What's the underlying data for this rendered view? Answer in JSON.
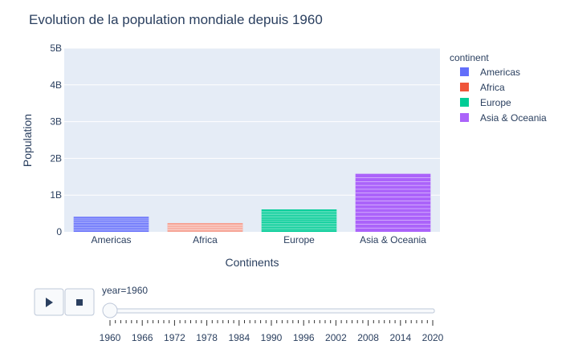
{
  "chart_data": {
    "type": "bar",
    "title": "Evolution de la population mondiale  depuis 1960",
    "xlabel": "Continents",
    "ylabel": "Population",
    "categories": [
      "Americas",
      "Africa",
      "Europe",
      "Asia & Oceania"
    ],
    "y_tick_labels": [
      "0",
      "1B",
      "2B",
      "3B",
      "4B",
      "5B"
    ],
    "y_tick_values": [
      0,
      1000000000,
      2000000000,
      3000000000,
      4000000000,
      5000000000
    ],
    "ylim": [
      0,
      5000000000
    ],
    "grid": true,
    "legend_title": "continent",
    "legend_position": "right",
    "series": [
      {
        "name": "Americas",
        "color": "#636efa",
        "values": [
          410000000,
          0,
          0,
          0
        ],
        "stack_lines": 9
      },
      {
        "name": "Africa",
        "color": "#ef553b",
        "values": [
          0,
          240000000,
          0,
          0
        ],
        "stack_lines": 14
      },
      {
        "name": "Europe",
        "color": "#00cc96",
        "values": [
          0,
          0,
          610000000,
          0
        ],
        "stack_lines": 12
      },
      {
        "name": "Asia & Oceania",
        "color": "#ab63fa",
        "values": [
          0,
          0,
          0,
          1580000000
        ],
        "stack_lines": 14
      }
    ]
  },
  "slider": {
    "current_label": "year=1960",
    "current_index": 0,
    "tick_labels": [
      "1960",
      "1966",
      "1972",
      "1978",
      "1984",
      "1990",
      "1996",
      "2002",
      "2008",
      "2014",
      "2020"
    ],
    "steps": 61
  },
  "controls": {
    "play_icon": "play-icon",
    "stop_icon": "stop-icon"
  }
}
